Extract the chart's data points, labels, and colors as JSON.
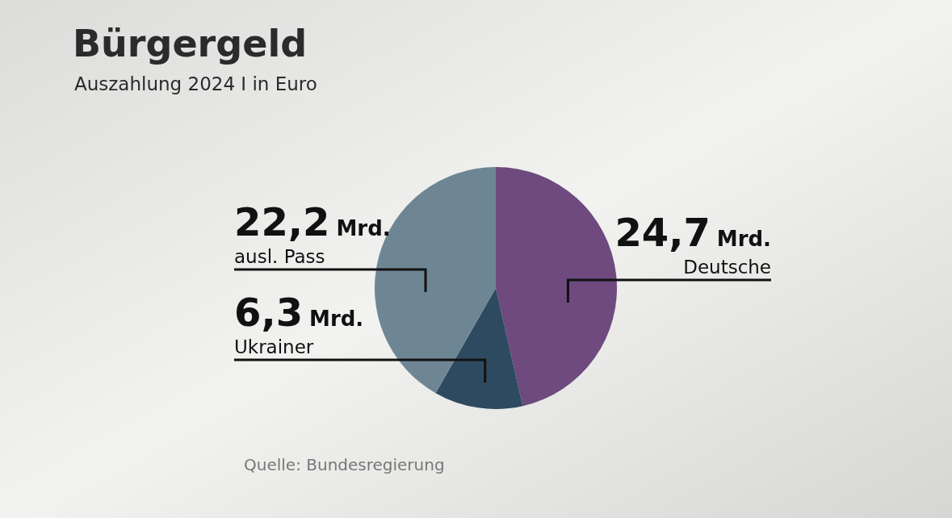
{
  "chart_data": {
    "type": "pie",
    "title": "Bürgergeld",
    "subtitle": "Auszahlung 2024 I in Euro",
    "categories": [
      "Deutsche",
      "Ukrainer",
      "ausl. Pass"
    ],
    "values": [
      24.7,
      6.3,
      22.2
    ],
    "colors": [
      "#6e4a7e",
      "#2e4a60",
      "#6e8694"
    ],
    "value_labels": [
      "24,7 Mrd.",
      "6,3 Mrd.",
      "22,2 Mrd."
    ],
    "annotations": [
      "Quelle: Bundesregierung"
    ]
  }
}
